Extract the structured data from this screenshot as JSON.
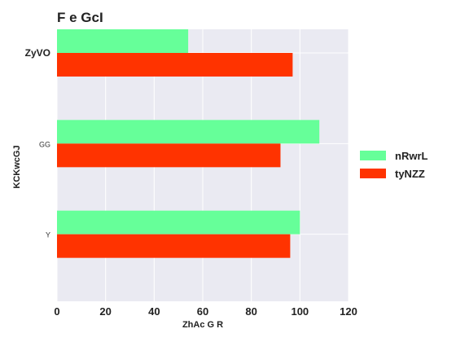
{
  "chart_data": {
    "type": "bar",
    "orientation": "horizontal",
    "title": "F e GcI",
    "xlabel": "ZhAc G R",
    "ylabel": "KCKwcGJ",
    "categories": [
      "ZyVO",
      "GG",
      "Y"
    ],
    "xticks": [
      0,
      20,
      40,
      60,
      80,
      100,
      120
    ],
    "xlim": [
      0,
      120
    ],
    "grid": true,
    "legend_position": "right",
    "series": [
      {
        "name": "nRwrL",
        "color": "#66ff99",
        "values": [
          54,
          108,
          100
        ]
      },
      {
        "name": "tyNZZ",
        "color": "#ff3300",
        "values": [
          97,
          92,
          96
        ]
      }
    ],
    "plot_background": "#eaeaf2"
  }
}
